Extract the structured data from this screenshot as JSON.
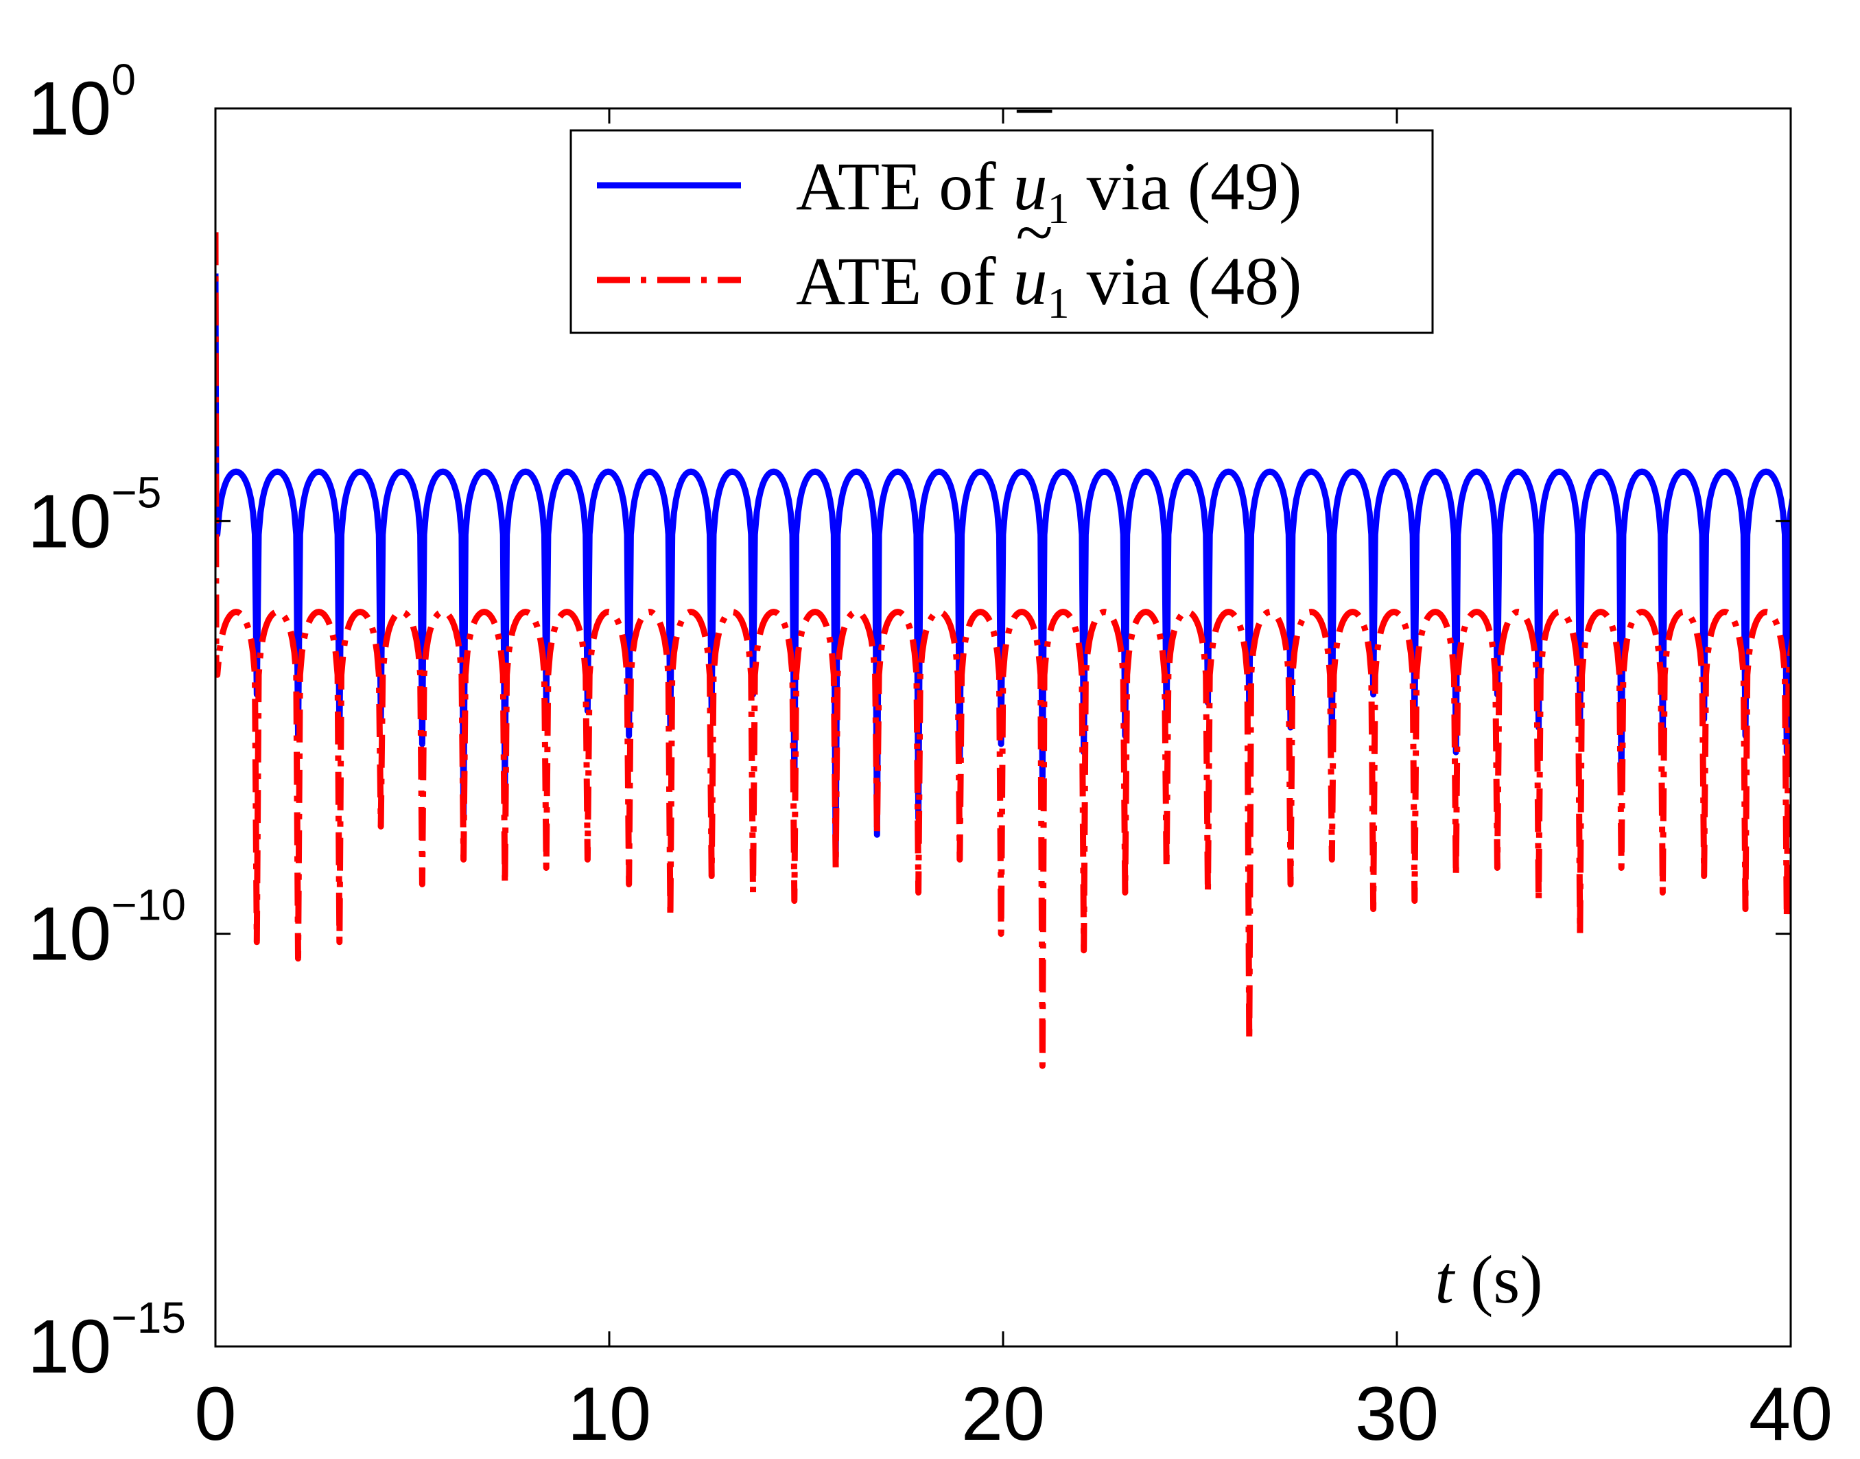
{
  "chart_data": {
    "type": "line",
    "title": "",
    "xlabel_var": "t",
    "xlabel_unit": "(s)",
    "ylabel": "",
    "xlim": [
      0,
      40
    ],
    "ylim_log10": [
      -15,
      0
    ],
    "y_scale": "log",
    "x_ticks": [
      {
        "value": 0,
        "label": "0"
      },
      {
        "value": 10,
        "label": "10"
      },
      {
        "value": 20,
        "label": "20"
      },
      {
        "value": 30,
        "label": "30"
      },
      {
        "value": 40,
        "label": "40"
      }
    ],
    "y_ticks": [
      {
        "log10": 0,
        "base": "10",
        "exp": "0"
      },
      {
        "log10": -5,
        "base": "10",
        "exp": "−5"
      },
      {
        "log10": -10,
        "base": "10",
        "exp": "−10"
      },
      {
        "log10": -15,
        "base": "10",
        "exp": "−15"
      }
    ],
    "legend": {
      "position": "top-center",
      "entries": [
        {
          "prefix": "ATE of ",
          "var": "u",
          "accent": "¯",
          "sub": "1",
          "suffix": " via (49)"
        },
        {
          "prefix": "ATE of ",
          "var": "u",
          "accent": "~",
          "sub": "1",
          "suffix": " via (48)"
        }
      ]
    },
    "series": [
      {
        "name": "ATE of ū1 via (49)",
        "color": "#0000ff",
        "style": "solid",
        "period": 1.05,
        "peak_log10": -4.4,
        "initial_spike_log10": -2.0,
        "dip_log10": [
          -7.1,
          -7.6,
          -7.6,
          -7.4,
          -7.7,
          -8.6,
          -8.2,
          -7.2,
          -7.3,
          -7.6,
          -7.5,
          -7.3,
          -7.1,
          -8.2,
          -9.1,
          -8.8,
          -8.6,
          -7.9,
          -7.7,
          -8.1,
          -7.8,
          -7.6,
          -7.4,
          -7.2,
          -7.3,
          -7.5,
          -7.6,
          -7.1,
          -7.4,
          -7.8,
          -7.1,
          -7.5,
          -7.4,
          -8.1,
          -7.7,
          -7.4,
          -7.6,
          -7.8
        ]
      },
      {
        "name": "ATE of ũ1 via (48)",
        "color": "#ff0000",
        "style": "dash-dot",
        "period": 1.05,
        "peak_log10": -6.1,
        "initial_spike_log10": -1.5,
        "dip_log10": [
          -10.1,
          -10.3,
          -10.1,
          -8.7,
          -9.4,
          -9.1,
          -9.4,
          -9.2,
          -9.1,
          -9.4,
          -9.8,
          -9.3,
          -9.5,
          -9.6,
          -9.2,
          -8.8,
          -9.5,
          -9.1,
          -10.0,
          -11.6,
          -10.2,
          -9.5,
          -9.2,
          -9.5,
          -11.3,
          -9.4,
          -9.1,
          -9.7,
          -9.6,
          -9.3,
          -9.2,
          -9.6,
          -10.0,
          -9.2,
          -9.5,
          -9.3,
          -9.7,
          -9.8
        ]
      }
    ]
  }
}
